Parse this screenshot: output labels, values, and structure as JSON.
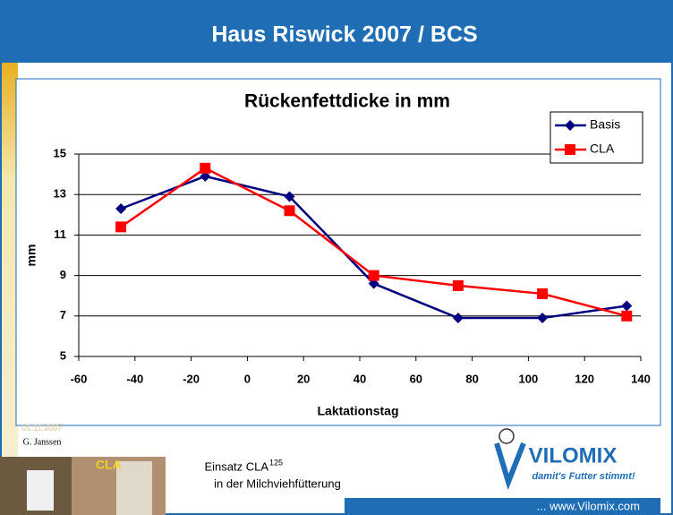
{
  "header": {
    "title": "Haus Riswick 2007 / BCS"
  },
  "chart_data": {
    "type": "line",
    "title": "Rückenfettdicke in mm",
    "x_label": "Laktationstag",
    "y_label": "mm",
    "x": [
      -45,
      -15,
      15,
      45,
      75,
      105,
      135
    ],
    "series": [
      {
        "name": "Basis",
        "color": "#000080",
        "marker": "diamond",
        "values": [
          12.3,
          13.9,
          12.9,
          8.6,
          6.9,
          6.9,
          7.5
        ]
      },
      {
        "name": "CLA",
        "color": "#ff0000",
        "marker": "square",
        "values": [
          11.4,
          14.3,
          12.2,
          9.0,
          8.5,
          8.1,
          7.0
        ]
      }
    ],
    "xlim": [
      -60,
      140
    ],
    "xticks": [
      -60,
      -40,
      -20,
      0,
      20,
      40,
      60,
      80,
      100,
      120,
      140
    ],
    "ylim": [
      5,
      15
    ],
    "yticks": [
      5,
      7,
      9,
      11,
      13,
      15
    ],
    "grid": true,
    "legend": "upper right"
  },
  "footer": {
    "date": "01.11.2007",
    "author": "G. Janssen",
    "photo_label": "CLA",
    "caption_main": "Einsatz CLA",
    "caption_sup": "125",
    "caption_line2": "in der Milchviehfütterung",
    "brand": "VILOMIX",
    "slogan": "damit's Futter stimmt!",
    "url": "... www.Vilomix.com"
  }
}
